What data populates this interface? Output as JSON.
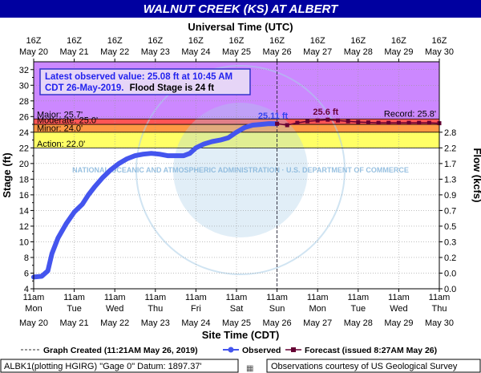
{
  "title": "WALNUT CREEK (KS) AT ALBERT",
  "top_axis_title": "Universal Time (UTC)",
  "bottom_axis_title": "Site Time (CDT)",
  "watermark": "NATIONAL OCEANIC AND ATMOSPHERIC ADMINISTRATION · U.S. DEPARTMENT OF COMMERCE",
  "info_box": {
    "line1": "Latest observed value: 25.08 ft at 10:45 AM",
    "line2_blue": "CDT 26-May-2019.",
    "line2_black": "Flood Stage is 24 ft"
  },
  "legend": {
    "created": "Graph Created (11:21AM May 26, 2019)",
    "observed": "Observed",
    "forecast": "Forecast (issued 8:27AM May 26)"
  },
  "footer": {
    "left": "ALBK1(plotting HGIRG) \"Gage 0\" Datum: 1897.37'",
    "right": "Observations courtesy of US Geological Survey"
  },
  "colors": {
    "title_bg": "#0000a0",
    "observed": "#4455ee",
    "forecast": "#660033",
    "major": "#cc88ff",
    "moderate": "#ff5555",
    "minor": "#ff9944",
    "action": "#ffff66"
  },
  "chart_data": {
    "type": "line",
    "ylabel": "Stage (ft)",
    "y2label": "Flow (kcfs)",
    "ylim": [
      4,
      33
    ],
    "yticks": [
      4,
      6,
      8,
      10,
      12,
      14,
      16,
      18,
      20,
      22,
      24,
      26,
      28,
      30,
      32
    ],
    "y2ticks": [
      {
        "stage": 4,
        "label": "0.0"
      },
      {
        "stage": 6,
        "label": "0.0"
      },
      {
        "stage": 8,
        "label": "0.2"
      },
      {
        "stage": 10,
        "label": "0.3"
      },
      {
        "stage": 12,
        "label": "0.5"
      },
      {
        "stage": 14,
        "label": "0.7"
      },
      {
        "stage": 16,
        "label": "0.9"
      },
      {
        "stage": 18,
        "label": "1.3"
      },
      {
        "stage": 20,
        "label": "1.7"
      },
      {
        "stage": 22,
        "label": "2.2"
      },
      {
        "stage": 24,
        "label": "2.8"
      }
    ],
    "x_days": [
      "May 20",
      "May 21",
      "May 22",
      "May 23",
      "May 24",
      "May 25",
      "May 26",
      "May 27",
      "May 28",
      "May 29",
      "May 30"
    ],
    "bottom_time_label": "11am",
    "bottom_weekdays": [
      "Mon",
      "Tue",
      "Wed",
      "Thu",
      "Fri",
      "Sat",
      "Sun",
      "Mon",
      "Tue",
      "Wed",
      "Thu"
    ],
    "top_time_label": "16Z",
    "thresholds": [
      {
        "name": "Major",
        "label": "Major: 25.7'",
        "value": 25.7,
        "top": 33
      },
      {
        "name": "Moderate",
        "label": "Moderate: 25.0'",
        "value": 25.0,
        "top": 25.7
      },
      {
        "name": "Minor",
        "label": "Minor: 24.0'",
        "value": 24.0,
        "top": 25.0
      },
      {
        "name": "Action",
        "label": "Action: 22.0'",
        "value": 22.0,
        "top": 24.0
      }
    ],
    "record": {
      "label": "Record: 25.8'",
      "value": 25.8
    },
    "now_day": 6.0,
    "observed": [
      [
        0.0,
        5.5
      ],
      [
        0.2,
        5.6
      ],
      [
        0.35,
        6.3
      ],
      [
        0.45,
        8.5
      ],
      [
        0.6,
        10.5
      ],
      [
        0.8,
        12.3
      ],
      [
        1.0,
        13.8
      ],
      [
        1.2,
        14.8
      ],
      [
        1.35,
        16.0
      ],
      [
        1.5,
        17.0
      ],
      [
        1.7,
        18.2
      ],
      [
        1.9,
        19.2
      ],
      [
        2.1,
        20.0
      ],
      [
        2.3,
        20.6
      ],
      [
        2.5,
        21.0
      ],
      [
        2.7,
        21.2
      ],
      [
        2.9,
        21.3
      ],
      [
        3.1,
        21.2
      ],
      [
        3.3,
        21.0
      ],
      [
        3.5,
        21.0
      ],
      [
        3.7,
        21.0
      ],
      [
        3.85,
        21.3
      ],
      [
        4.0,
        22.0
      ],
      [
        4.2,
        22.5
      ],
      [
        4.4,
        22.8
      ],
      [
        4.6,
        23.0
      ],
      [
        4.8,
        23.3
      ],
      [
        5.0,
        24.0
      ],
      [
        5.2,
        24.6
      ],
      [
        5.4,
        24.9
      ],
      [
        5.6,
        25.0
      ],
      [
        5.8,
        25.1
      ],
      [
        6.0,
        25.08
      ]
    ],
    "forecast": [
      [
        6.0,
        25.08
      ],
      [
        6.25,
        24.9
      ],
      [
        6.5,
        25.2
      ],
      [
        6.75,
        25.4
      ],
      [
        7.0,
        25.5
      ],
      [
        7.25,
        25.6
      ],
      [
        7.5,
        25.5
      ],
      [
        7.75,
        25.4
      ],
      [
        8.0,
        25.3
      ],
      [
        8.25,
        25.25
      ],
      [
        8.5,
        25.2
      ],
      [
        8.75,
        25.2
      ],
      [
        9.0,
        25.2
      ],
      [
        9.25,
        25.2
      ],
      [
        9.5,
        25.2
      ],
      [
        9.75,
        25.2
      ],
      [
        10.0,
        25.15
      ]
    ],
    "annotations": [
      {
        "label": "25.11 ft",
        "x": 5.9,
        "y": 25.1,
        "series": "observed"
      },
      {
        "label": "25.6 ft",
        "x": 7.2,
        "y": 25.6,
        "series": "forecast"
      }
    ]
  }
}
